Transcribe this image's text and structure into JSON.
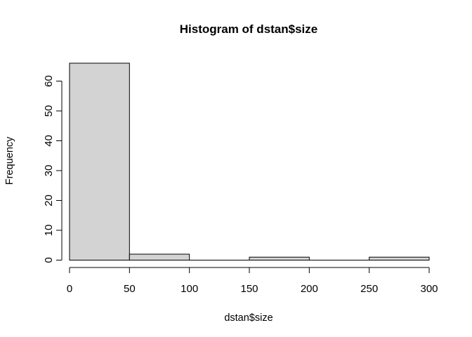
{
  "chart_data": {
    "type": "bar",
    "title": "Histogram of dstan$size",
    "xlabel": "dstan$size",
    "ylabel": "Frequency",
    "bins": [
      {
        "from": 0,
        "to": 50,
        "count": 66
      },
      {
        "from": 50,
        "to": 100,
        "count": 2
      },
      {
        "from": 100,
        "to": 150,
        "count": 0
      },
      {
        "from": 150,
        "to": 200,
        "count": 1
      },
      {
        "from": 200,
        "to": 250,
        "count": 0
      },
      {
        "from": 250,
        "to": 300,
        "count": 1
      }
    ],
    "xticks": [
      0,
      50,
      100,
      150,
      200,
      250,
      300
    ],
    "yticks": [
      0,
      10,
      20,
      30,
      40,
      50,
      60
    ],
    "xlim": [
      0,
      300
    ],
    "ylim": [
      0,
      66
    ],
    "grid": false,
    "bar_fill": "#d3d3d3",
    "bar_stroke": "#000000"
  }
}
